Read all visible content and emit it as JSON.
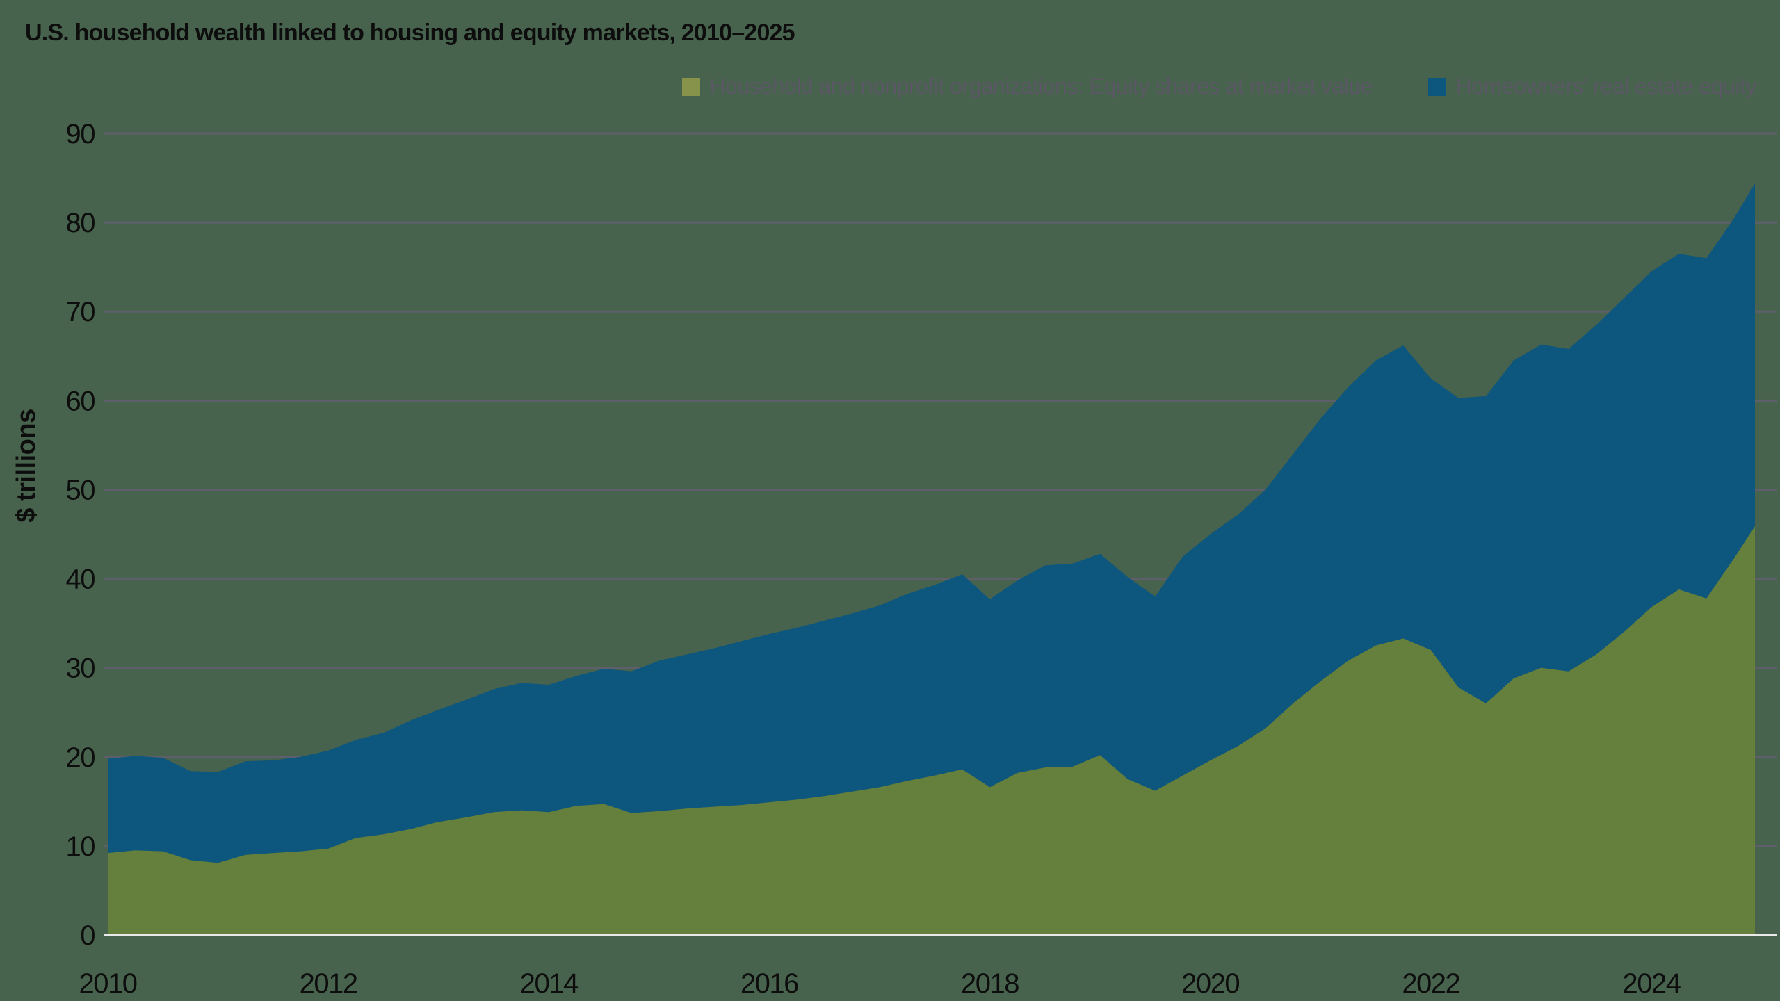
{
  "colors": {
    "background": "#48634D",
    "grid": "#5F5F6B",
    "baseline": "#E9E9E9",
    "axis_text": "#0D0D0D",
    "legend_text": "#5A5864",
    "equity_fill": "#64803C",
    "equity_legend_swatch": "#87934A",
    "realestate_fill": "#0D567D",
    "realestate_legend_swatch": "#0D567D"
  },
  "chart_data": {
    "type": "area",
    "stacked": true,
    "title": "U.S. household wealth linked to housing and equity markets, 2010–2025",
    "xlabel": "",
    "ylabel": "$ trillions",
    "xlim": [
      2010,
      2024.94
    ],
    "ylim": [
      0,
      90
    ],
    "yticks": [
      0,
      10,
      20,
      30,
      40,
      50,
      60,
      70,
      80,
      90
    ],
    "xticks": [
      2010,
      2012,
      2014,
      2016,
      2018,
      2020,
      2022,
      2024
    ],
    "grid": "horizontal",
    "legend_position": "top-right",
    "x": [
      2010,
      2010.25,
      2010.5,
      2010.75,
      2011,
      2011.25,
      2011.5,
      2011.75,
      2012,
      2012.25,
      2012.5,
      2012.75,
      2013,
      2013.25,
      2013.5,
      2013.75,
      2014,
      2014.25,
      2014.5,
      2014.75,
      2015,
      2015.25,
      2015.5,
      2015.75,
      2016,
      2016.25,
      2016.5,
      2016.75,
      2017,
      2017.25,
      2017.5,
      2017.75,
      2018,
      2018.25,
      2018.5,
      2018.75,
      2019,
      2019.25,
      2019.5,
      2019.75,
      2020,
      2020.25,
      2020.5,
      2020.75,
      2021,
      2021.25,
      2021.5,
      2021.75,
      2022,
      2022.25,
      2022.5,
      2022.75,
      2023,
      2023.25,
      2023.5,
      2023.75,
      2024,
      2024.25,
      2024.5,
      2024.75,
      2024.94
    ],
    "series": [
      {
        "name": "Household and nonprofit organizations: Equity shares at market value",
        "unit": "$ trillions",
        "values": [
          9.2,
          9.5,
          9.4,
          8.4,
          8.1,
          9.0,
          9.2,
          9.4,
          9.7,
          10.9,
          11.3,
          11.9,
          12.7,
          13.2,
          13.8,
          14.0,
          13.8,
          14.5,
          14.7,
          13.7,
          13.9,
          14.2,
          14.4,
          14.6,
          14.9,
          15.2,
          15.6,
          16.1,
          16.6,
          17.3,
          17.9,
          18.6,
          16.6,
          18.2,
          18.8,
          18.9,
          20.2,
          17.5,
          16.2,
          17.9,
          19.6,
          21.2,
          23.2,
          26.0,
          28.5,
          30.8,
          32.5,
          33.3,
          32.0,
          27.8,
          26.0,
          28.8,
          30.0,
          29.6,
          31.5,
          34.0,
          36.8,
          38.8,
          37.8,
          42.3,
          45.9
        ]
      },
      {
        "name": "Homeowners' real estate equity",
        "unit": "$ trillions",
        "values": [
          10.6,
          10.6,
          10.5,
          10.0,
          10.2,
          10.5,
          10.4,
          10.6,
          11.0,
          11.0,
          11.4,
          12.2,
          12.6,
          13.2,
          13.8,
          14.3,
          14.3,
          14.6,
          15.2,
          15.9,
          16.9,
          17.3,
          17.8,
          18.4,
          18.9,
          19.3,
          19.7,
          20.0,
          20.4,
          21.0,
          21.4,
          21.9,
          21.1,
          21.6,
          22.7,
          22.8,
          22.6,
          22.7,
          21.8,
          24.6,
          25.4,
          26.0,
          26.8,
          28.0,
          29.5,
          30.7,
          32.0,
          32.9,
          30.5,
          32.5,
          34.5,
          35.7,
          36.3,
          36.2,
          37.0,
          37.5,
          37.7,
          37.7,
          38.2,
          38.2,
          38.5
        ]
      }
    ]
  }
}
